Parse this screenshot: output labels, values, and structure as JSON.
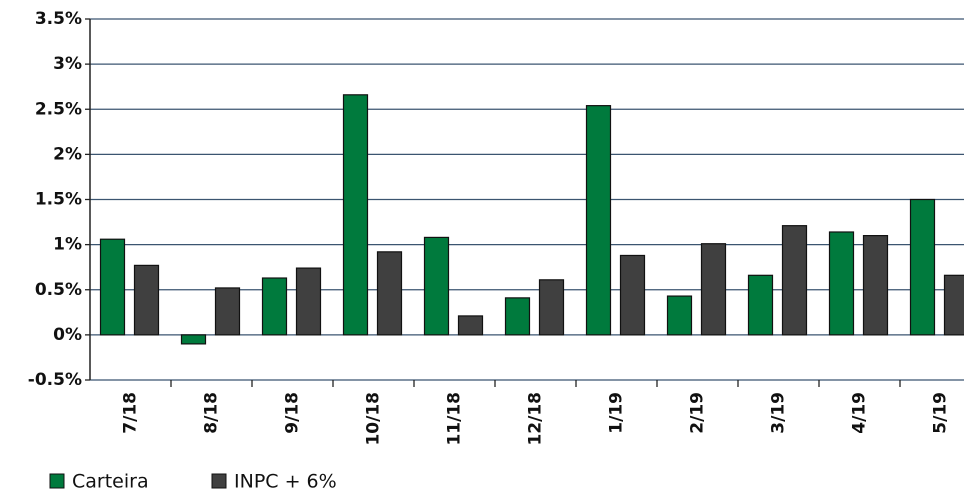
{
  "chart_data": {
    "type": "bar",
    "categories": [
      "7/18",
      "8/18",
      "9/18",
      "10/18",
      "11/18",
      "12/18",
      "1/19",
      "2/19",
      "3/19",
      "4/19",
      "5/19"
    ],
    "series": [
      {
        "name": "Carteira",
        "color": "#007a3d",
        "values": [
          1.06,
          -0.1,
          0.63,
          2.66,
          1.08,
          0.41,
          2.54,
          0.43,
          0.66,
          1.14,
          1.5
        ]
      },
      {
        "name": "INPC + 6%",
        "color": "#404040",
        "values": [
          0.77,
          0.52,
          0.74,
          0.92,
          0.21,
          0.61,
          0.88,
          1.01,
          1.21,
          1.1,
          0.66
        ]
      }
    ],
    "ylim": [
      -0.5,
      3.5
    ],
    "yticks": [
      {
        "value": -0.5,
        "label": "-0.5%"
      },
      {
        "value": 0,
        "label": "0%"
      },
      {
        "value": 0.5,
        "label": "0.5%"
      },
      {
        "value": 1,
        "label": "1%"
      },
      {
        "value": 1.5,
        "label": "1.5%"
      },
      {
        "value": 2,
        "label": "2%"
      },
      {
        "value": 2.5,
        "label": "2.5%"
      },
      {
        "value": 3,
        "label": "3%"
      },
      {
        "value": 3.5,
        "label": "3.5%"
      }
    ],
    "grid": true,
    "legend": "bottom-left"
  }
}
